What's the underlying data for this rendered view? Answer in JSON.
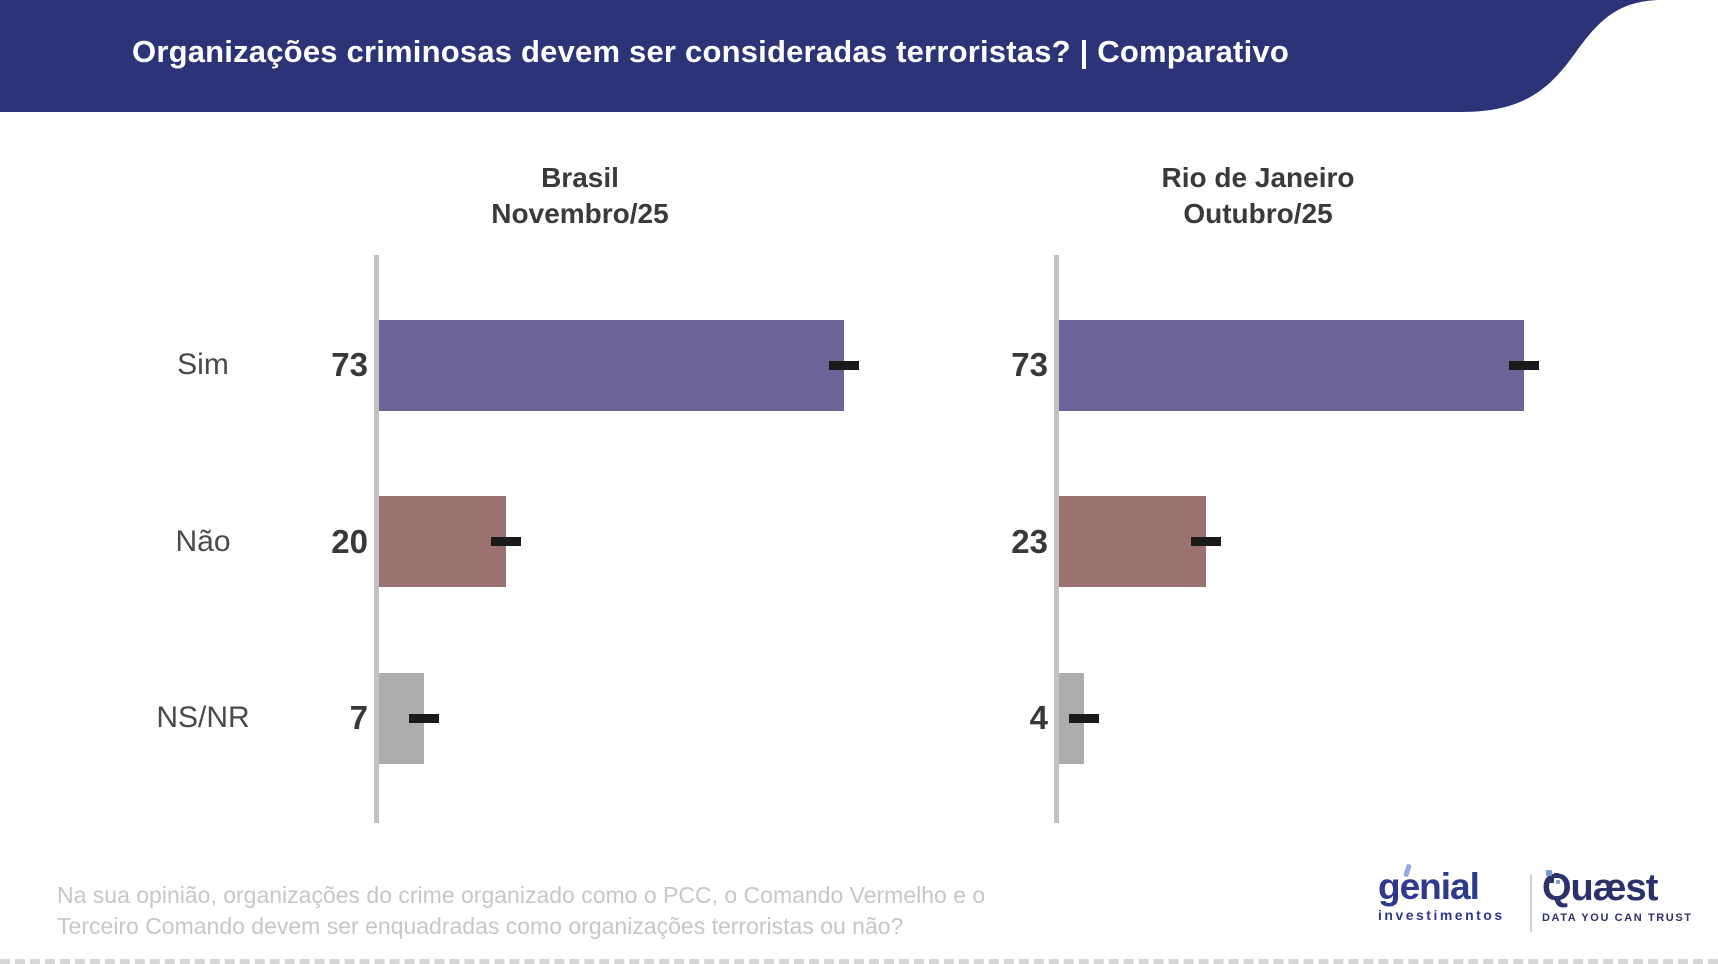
{
  "header": {
    "title": "Organizações criminosas devem ser consideradas terroristas? | Comparativo",
    "bg_color": "#2C3377",
    "text_color": "#FFFFFF"
  },
  "chart_data": [
    {
      "type": "bar",
      "orientation": "horizontal",
      "title": "Brasil",
      "subtitle": "Novembro/25",
      "categories": [
        "Sim",
        "Não",
        "NS/NR"
      ],
      "values": [
        73,
        20,
        7
      ],
      "bar_colors": [
        "#6A6499",
        "#9C7271",
        "#ACACAC"
      ],
      "xlim": [
        0,
        100
      ],
      "grid": false,
      "legend": "none",
      "error_ticks_at_bar_end": true
    },
    {
      "type": "bar",
      "orientation": "horizontal",
      "title": "Rio de Janeiro",
      "subtitle": "Outubro/25",
      "categories": [
        "Sim",
        "Não",
        "NS/NR"
      ],
      "values": [
        73,
        23,
        4
      ],
      "bar_colors": [
        "#6A6499",
        "#9C7271",
        "#ACACAC"
      ],
      "xlim": [
        0,
        100
      ],
      "grid": false,
      "legend": "none",
      "error_ticks_at_bar_end": true
    }
  ],
  "footnote": "Na sua opinião, organizações do crime organizado como o PCC, o Comando Vermelho e o Terceiro Comando devem ser enquadradas como organizações terroristas ou não?",
  "logos": {
    "genial": {
      "name": "genial",
      "subtitle": "investimentos"
    },
    "quaest": {
      "name": "Quæst",
      "tagline": "DATA YOU CAN TRUST"
    }
  },
  "colors": {
    "axis": "#C2C2C2",
    "dash_marker": "#1A1A1A",
    "chart_title_text": "#3A3A3A",
    "category_text": "#4A4A4A",
    "value_text": "#383838",
    "footnote_text": "#C7C7C9",
    "genial_blue": "#2F3A8C",
    "quaest_navy": "#2A316B"
  }
}
